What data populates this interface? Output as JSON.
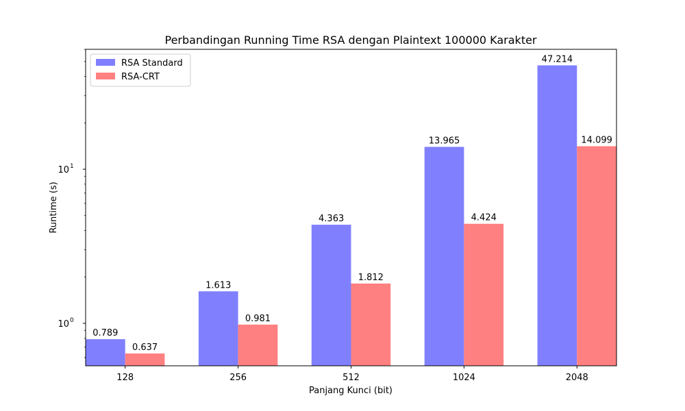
{
  "chart_data": {
    "type": "bar",
    "title": "Perbandingan Running Time RSA dengan Plaintext 100000 Karakter",
    "xlabel": "Panjang Kunci (bit)",
    "ylabel": "Runtime (s)",
    "yscale": "log",
    "ylim": [
      0.53,
      60
    ],
    "y_ticks": [
      1,
      10
    ],
    "y_tick_labels": [
      {
        "base": "10",
        "exp": "0"
      },
      {
        "base": "10",
        "exp": "1"
      }
    ],
    "grid": false,
    "legend_position": "top-left",
    "categories": [
      "128",
      "256",
      "512",
      "1024",
      "2048"
    ],
    "series": [
      {
        "name": "RSA Standard",
        "color": "#8080ff",
        "values": [
          0.789,
          1.613,
          4.363,
          13.965,
          47.214
        ],
        "labels": [
          "0.789",
          "1.613",
          "4.363",
          "13.965",
          "47.214"
        ]
      },
      {
        "name": "RSA-CRT",
        "color": "#ff8080",
        "values": [
          0.637,
          0.981,
          1.812,
          4.424,
          14.099
        ],
        "labels": [
          "0.637",
          "0.981",
          "1.812",
          "4.424",
          "14.099"
        ]
      }
    ]
  }
}
